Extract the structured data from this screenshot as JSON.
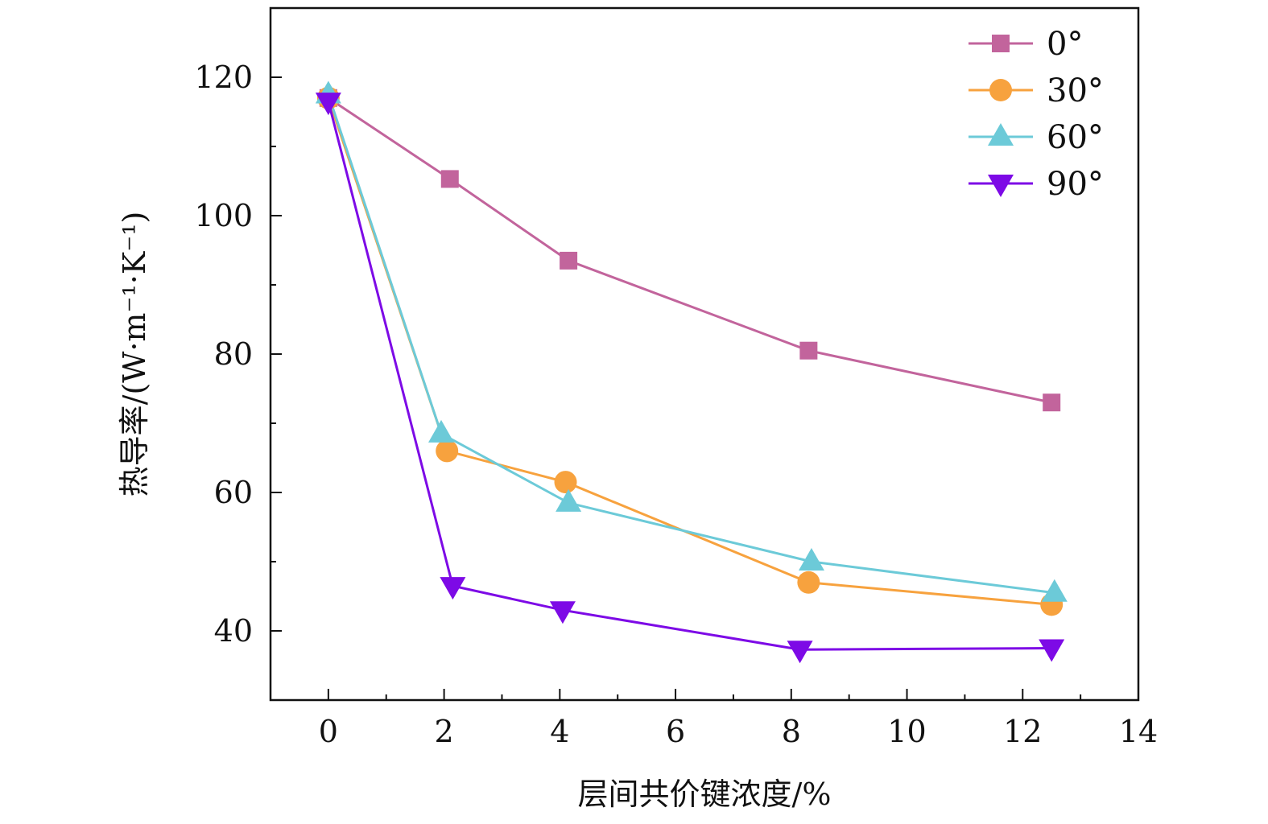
{
  "chart_data": {
    "type": "line",
    "xlabel": "层间共价键浓度/%",
    "ylabel": "热导率/(W·m⁻¹·K⁻¹)",
    "xlim": [
      -1,
      14
    ],
    "ylim": [
      30,
      130
    ],
    "xticks": [
      0,
      2,
      4,
      6,
      8,
      10,
      12,
      14
    ],
    "yticks": [
      40,
      60,
      80,
      100,
      120
    ],
    "xtick_labels": [
      "0",
      "2",
      "4",
      "6",
      "8",
      "10",
      "12",
      "14"
    ],
    "ytick_labels": [
      "40",
      "60",
      "80",
      "100",
      "120"
    ],
    "legend_position": "top-right",
    "grid": false,
    "series": [
      {
        "name": "0°",
        "color": "#c2649c",
        "marker": "square",
        "x": [
          0,
          2.1,
          4.15,
          8.3,
          12.5
        ],
        "y": [
          117,
          105.3,
          93.5,
          80.5,
          73
        ]
      },
      {
        "name": "30°",
        "color": "#f7a23e",
        "marker": "circle",
        "x": [
          0,
          2.05,
          4.1,
          8.3,
          12.5
        ],
        "y": [
          117,
          66,
          61.5,
          47,
          43.8
        ]
      },
      {
        "name": "60°",
        "color": "#6ccad8",
        "marker": "triangle-up",
        "x": [
          0,
          1.95,
          4.15,
          8.35,
          12.55
        ],
        "y": [
          117.5,
          68.5,
          58.5,
          50,
          45.5
        ]
      },
      {
        "name": "90°",
        "color": "#7d0ae6",
        "marker": "triangle-down",
        "x": [
          0,
          2.15,
          4.05,
          8.15,
          12.5
        ],
        "y": [
          116.5,
          46.5,
          43,
          37.3,
          37.5
        ]
      }
    ]
  }
}
